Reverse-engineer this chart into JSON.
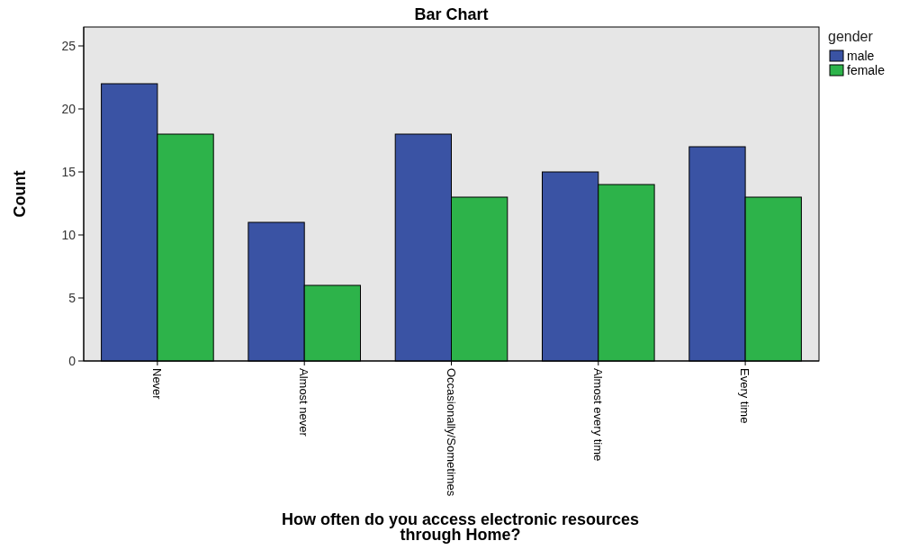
{
  "chart_data": {
    "type": "bar",
    "title": "Bar Chart",
    "xlabel": "How often do you access electronic resources through Home?",
    "ylabel": "Count",
    "legend_title": "gender",
    "legend": "right",
    "categories": [
      "Never",
      "Almost never",
      "Occasionally/Sometimes",
      "Almost every time",
      "Every time"
    ],
    "series": [
      {
        "name": "male",
        "color": "#3a53a4",
        "values": [
          22,
          11,
          18,
          15,
          17
        ]
      },
      {
        "name": "female",
        "color": "#2db34a",
        "values": [
          18,
          6,
          13,
          14,
          13
        ]
      }
    ],
    "ylim": [
      0,
      26.5
    ],
    "yticks": [
      0,
      5,
      10,
      15,
      20,
      25
    ],
    "grid": false
  }
}
